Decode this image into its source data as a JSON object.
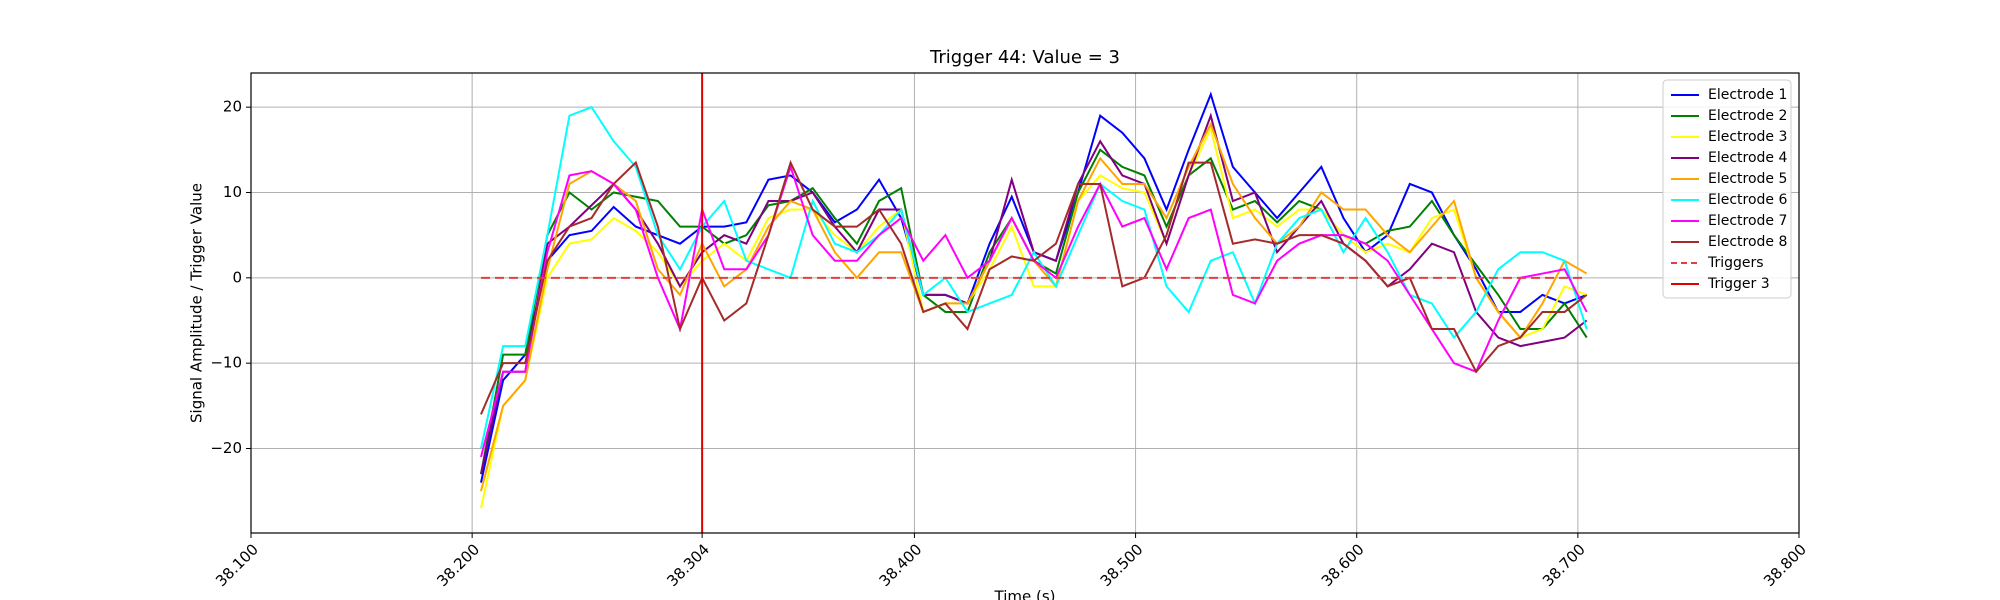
{
  "chart_data": {
    "type": "line",
    "title": "Trigger 44: Value = 3",
    "xlabel": "Time (s)",
    "ylabel": "Signal Amplitude / Trigger Value",
    "grid": true,
    "legend": "upper right",
    "xlim": [
      38.1,
      38.8
    ],
    "ylim": [
      -29.9,
      24.0
    ],
    "xticks": [
      {
        "value": 38.1,
        "label": "38.100"
      },
      {
        "value": 38.2,
        "label": "38.200"
      },
      {
        "value": 38.304,
        "label": "38.304"
      },
      {
        "value": 38.4,
        "label": "38.400"
      },
      {
        "value": 38.5,
        "label": "38.500"
      },
      {
        "value": 38.6,
        "label": "38.600"
      },
      {
        "value": 38.7,
        "label": "38.700"
      },
      {
        "value": 38.8,
        "label": "38.800"
      }
    ],
    "yticks": [
      {
        "value": -20,
        "label": "−20"
      },
      {
        "value": -10,
        "label": "−10"
      },
      0,
      10,
      20
    ],
    "x": [
      38.204,
      38.214,
      38.224,
      38.234,
      38.244,
      38.254,
      38.264,
      38.274,
      38.284,
      38.294,
      38.304,
      38.314,
      38.324,
      38.334,
      38.344,
      38.354,
      38.364,
      38.374,
      38.384,
      38.394,
      38.404,
      38.414,
      38.424,
      38.434,
      38.444,
      38.454,
      38.464,
      38.474,
      38.484,
      38.494,
      38.504,
      38.514,
      38.524,
      38.534,
      38.544,
      38.554,
      38.564,
      38.574,
      38.584,
      38.594,
      38.604,
      38.614,
      38.624,
      38.634,
      38.644,
      38.654,
      38.664,
      38.674,
      38.684,
      38.694,
      38.704
    ],
    "series": [
      {
        "name": "Electrode 1",
        "color": "#0000ff",
        "values": [
          -24,
          -12,
          -9,
          2,
          5,
          5.5,
          8.3,
          6,
          5,
          4,
          6,
          6,
          6.5,
          11.5,
          12,
          10,
          6.5,
          8,
          11.5,
          7,
          -2,
          -2,
          -3,
          4,
          9.5,
          3,
          2,
          10,
          19,
          17,
          14,
          8,
          15,
          21.5,
          13,
          10,
          7,
          10,
          13,
          7,
          3,
          5,
          11,
          10,
          5,
          1,
          -4,
          -4,
          -2,
          -3,
          -2
        ]
      },
      {
        "name": "Electrode 2",
        "color": "#008000",
        "values": [
          -23,
          -9,
          -9,
          5,
          10,
          8,
          10,
          9.5,
          9,
          6,
          6,
          4,
          5,
          8.5,
          9,
          10.5,
          7,
          4,
          9,
          10.5,
          -2,
          -4,
          -4,
          3,
          7,
          2,
          0.5,
          10,
          15,
          13,
          12,
          6,
          12,
          14,
          8,
          9,
          6.5,
          9,
          8,
          5,
          4,
          5.5,
          6,
          9,
          5,
          1.5,
          -2,
          -6,
          -6,
          -3,
          -7
        ]
      },
      {
        "name": "Electrode 3",
        "color": "#ffff00",
        "values": [
          -27,
          -15,
          -12,
          0,
          4,
          4.5,
          7,
          5.5,
          3,
          -1,
          2,
          4,
          2,
          7,
          8,
          8,
          5,
          3,
          6,
          8,
          -4,
          -3,
          -3,
          1,
          6,
          -1,
          -1,
          9,
          12,
          10.5,
          10,
          4,
          12,
          17.5,
          7,
          8,
          6,
          8,
          8,
          5,
          3,
          4,
          3,
          7,
          8,
          0,
          -4,
          -7,
          -6,
          -1,
          -2
        ]
      },
      {
        "name": "Electrode 4",
        "color": "#800080",
        "values": [
          -23,
          -11,
          -11,
          4,
          6,
          8.5,
          11,
          8,
          4,
          -1,
          3,
          5,
          4,
          9,
          9,
          10,
          6,
          3,
          8,
          8,
          -2,
          -2,
          -3,
          2,
          11.5,
          3,
          2,
          11,
          16,
          12,
          11,
          4,
          12,
          19,
          9,
          10,
          3,
          6,
          9,
          4,
          2,
          -1,
          1,
          4,
          3,
          -4,
          -7,
          -8,
          -7.5,
          -7,
          -5
        ]
      },
      {
        "name": "Electrode 5",
        "color": "#ffa500",
        "values": [
          -25,
          -15,
          -12,
          1,
          11,
          12.5,
          11,
          9,
          1,
          -2,
          4,
          -1,
          1,
          6,
          9,
          8,
          3,
          0,
          3,
          3,
          -4,
          -3,
          -3,
          2,
          7,
          2,
          -1,
          9,
          14,
          11,
          11,
          7,
          13,
          18,
          11,
          7,
          4,
          6,
          10,
          8,
          8,
          5,
          3,
          6,
          9,
          0,
          -4,
          -7,
          -3,
          2,
          0.5
        ]
      },
      {
        "name": "Electrode 6",
        "color": "#00ffff",
        "values": [
          -20,
          -8,
          -8,
          5,
          19,
          20,
          16,
          13,
          5,
          1,
          6,
          9,
          2,
          1,
          0,
          9,
          4,
          3,
          5,
          8,
          -2,
          0,
          -4,
          -3,
          -2,
          3,
          -1,
          5,
          11,
          9,
          8,
          -1,
          -4,
          2,
          3,
          -3,
          4,
          7,
          8,
          3,
          7,
          3,
          -2,
          -3,
          -7,
          -4,
          1,
          3,
          3,
          2,
          -6
        ]
      },
      {
        "name": "Electrode 7",
        "color": "#ff00ff",
        "values": [
          -21,
          -11,
          -11,
          3,
          12,
          12.5,
          11,
          8,
          0,
          -6,
          8,
          1,
          1,
          5,
          13,
          5,
          2,
          2,
          5,
          7,
          2,
          5,
          0,
          2,
          7,
          2,
          0,
          6,
          11,
          6,
          7,
          1,
          7,
          8,
          -2,
          -3,
          2,
          4,
          5,
          5,
          4,
          2,
          -2,
          -6,
          -10,
          -11,
          -5,
          0,
          0.5,
          1,
          -4
        ]
      },
      {
        "name": "Electrode 8",
        "color": "#a52a2a",
        "values": [
          -16,
          -10,
          -10,
          2,
          6,
          7,
          11,
          13.5,
          6,
          -6,
          0,
          -5,
          -3,
          5,
          13.5,
          8,
          6,
          6,
          8,
          4,
          -4,
          -3,
          -6,
          1,
          2.5,
          2,
          4,
          11,
          11,
          -1,
          0,
          5,
          13.5,
          13.5,
          4,
          4.5,
          4,
          5,
          5,
          4,
          2,
          -1,
          0,
          -6,
          -6,
          -11,
          -8,
          -7,
          -4,
          -4,
          -2
        ]
      },
      {
        "name": "Triggers",
        "color": "#e04040",
        "dashed": true,
        "x": [
          38.204,
          38.704
        ],
        "values": [
          0,
          0
        ]
      }
    ],
    "vline": {
      "name": "Trigger 3",
      "color": "#e00000",
      "x": 38.304
    }
  }
}
